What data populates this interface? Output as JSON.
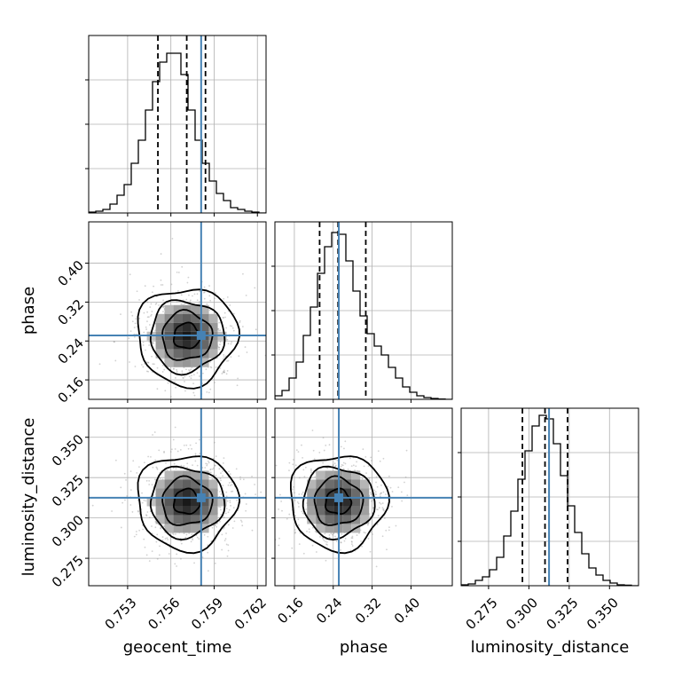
{
  "chart_data": {
    "type": "corner",
    "parameters": [
      "geocent_time",
      "phase",
      "luminosity_distance"
    ],
    "axis_labels": {
      "geocent_time": "geocent_time",
      "phase": "phase",
      "luminosity_distance": "luminosity_distance"
    },
    "ranges": {
      "geocent_time": [
        0.7503,
        0.7626
      ],
      "phase": [
        0.12,
        0.485
      ],
      "luminosity_distance": [
        0.258,
        0.368
      ]
    },
    "ticks": {
      "geocent_time": {
        "values": [
          0.753,
          0.756,
          0.759,
          0.762
        ],
        "labels": [
          "0.753",
          "0.756",
          "0.759",
          "0.762"
        ]
      },
      "phase": {
        "values": [
          0.16,
          0.24,
          0.32,
          0.4
        ],
        "labels": [
          "0.16",
          "0.24",
          "0.32",
          "0.40"
        ]
      },
      "luminosity_distance": {
        "values": [
          0.275,
          0.3,
          0.325,
          0.35
        ],
        "labels": [
          "0.275",
          "0.300",
          "0.325",
          "0.350"
        ]
      }
    },
    "truths": {
      "geocent_time": 0.7581,
      "phase": 0.2515,
      "luminosity_distance": 0.3125
    },
    "quantiles": {
      "geocent_time": [
        0.7551,
        0.7571,
        0.7584
      ],
      "phase": [
        0.212,
        0.25,
        0.307
      ],
      "luminosity_distance": [
        0.296,
        0.31,
        0.324
      ]
    },
    "histograms": {
      "geocent_time": [
        0.5,
        1,
        2,
        5,
        10,
        16,
        28,
        41,
        58,
        74,
        85,
        90,
        90,
        78,
        58,
        41,
        28,
        18,
        11,
        7,
        3,
        2,
        1,
        0.5,
        0
      ],
      "phase": [
        2,
        5,
        12,
        21,
        36,
        52,
        71,
        86,
        94,
        93,
        78,
        61,
        47,
        37,
        30,
        25,
        18,
        12,
        7,
        4,
        2,
        1,
        0.5,
        0.2,
        0
      ],
      "luminosity_distance": [
        0.5,
        1,
        3,
        5,
        9,
        16,
        28,
        42,
        60,
        76,
        90,
        96,
        94,
        80,
        62,
        45,
        30,
        18,
        10,
        6,
        3,
        1.5,
        0.5,
        0.3,
        0
      ]
    },
    "hist_max": 100,
    "grid": true,
    "contour_color": "#000000",
    "truth_color": "#4682b4"
  }
}
